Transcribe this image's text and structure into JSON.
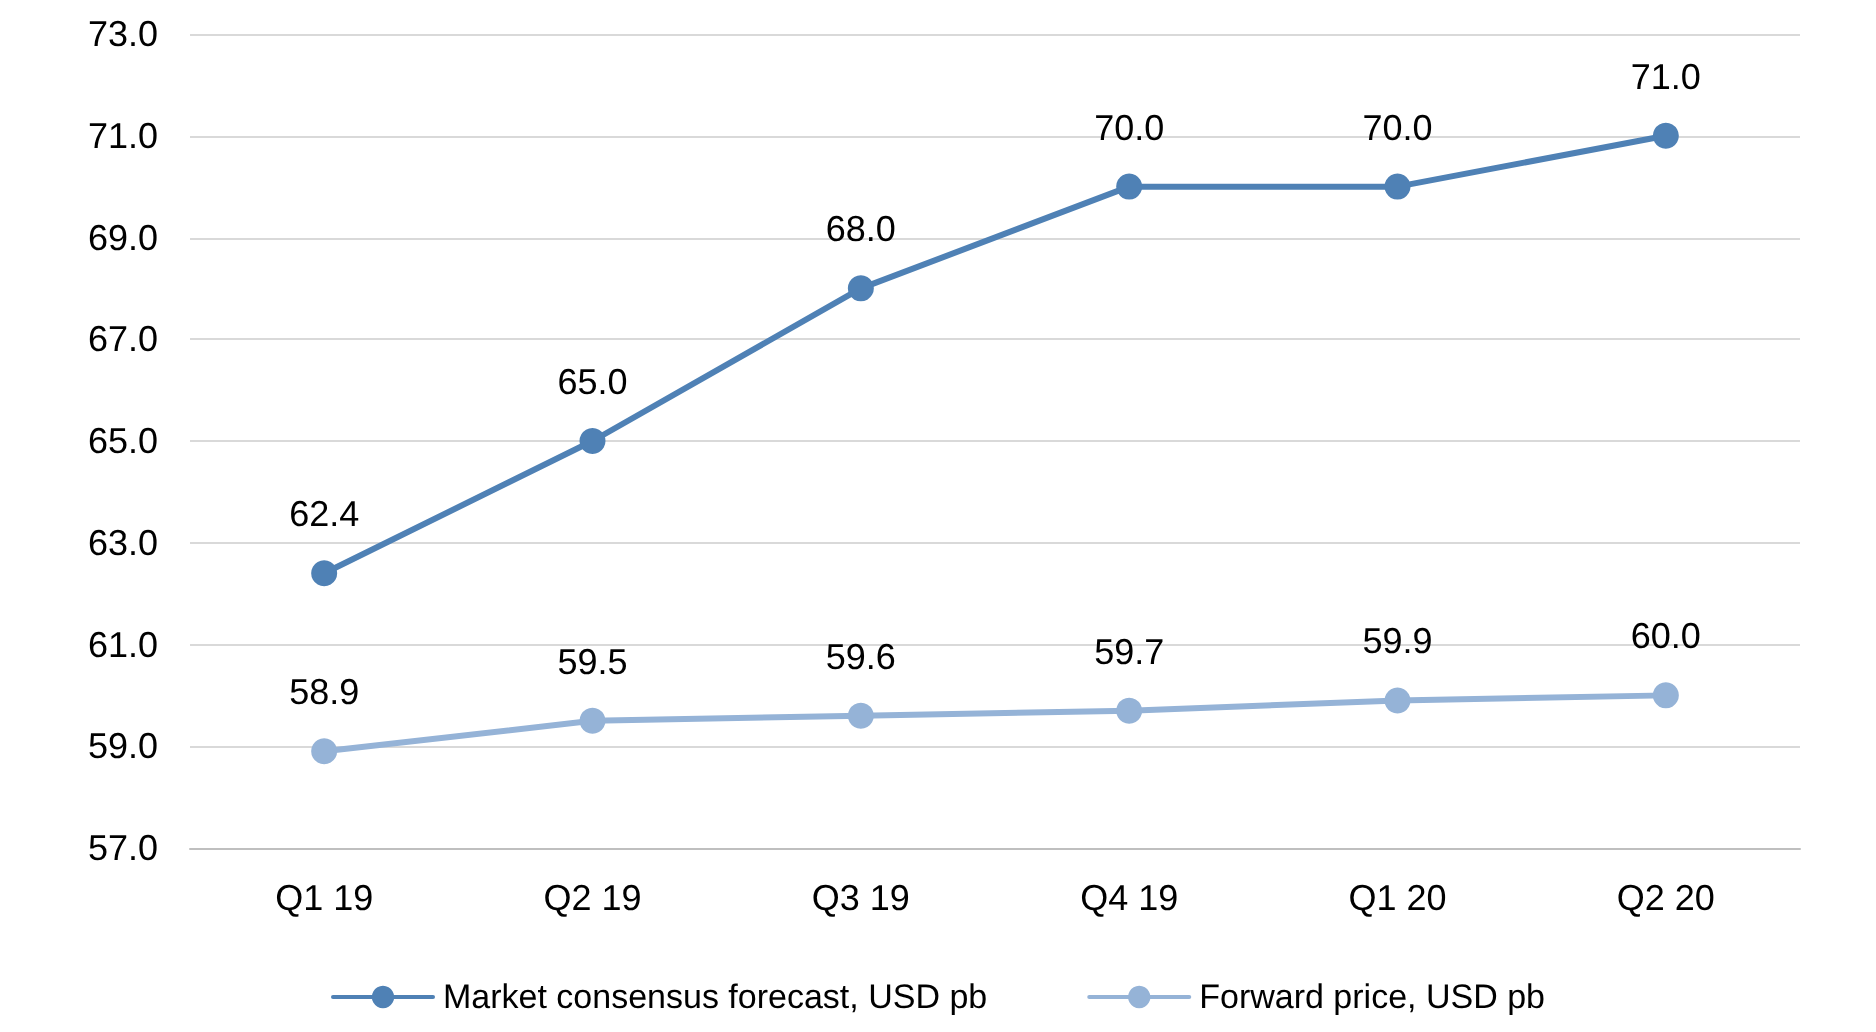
{
  "chart_data": {
    "type": "line",
    "categories": [
      "Q1 19",
      "Q2 19",
      "Q3 19",
      "Q4 19",
      "Q1 20",
      "Q2 20"
    ],
    "series": [
      {
        "name": "Market consensus forecast, USD pb",
        "color": "#4f81b5",
        "values": [
          62.4,
          65,
          68,
          70,
          70,
          71
        ],
        "value_labels": [
          "62.4",
          "65.0",
          "68.0",
          "70.0",
          "70.0",
          "71.0"
        ]
      },
      {
        "name": "Forward price, USD pb",
        "color": "#95b3d7",
        "values": [
          58.9,
          59.5,
          59.6,
          59.7,
          59.9,
          60
        ],
        "value_labels": [
          "58.9",
          "59.5",
          "59.6",
          "59.7",
          "59.9",
          "60.0"
        ]
      }
    ],
    "ylim": [
      57,
      73
    ],
    "yticks": [
      {
        "value": 57,
        "label": "57.0"
      },
      {
        "value": 59,
        "label": "59.0"
      },
      {
        "value": 61,
        "label": "61.0"
      },
      {
        "value": 63,
        "label": "63.0"
      },
      {
        "value": 65,
        "label": "65.0"
      },
      {
        "value": 67,
        "label": "67.0"
      },
      {
        "value": 69,
        "label": "69.0"
      },
      {
        "value": 71,
        "label": "71.0"
      },
      {
        "value": 73,
        "label": "73.0"
      }
    ],
    "grid": "y",
    "legend": "bottom",
    "marker": "circle",
    "line_style": "solid"
  }
}
